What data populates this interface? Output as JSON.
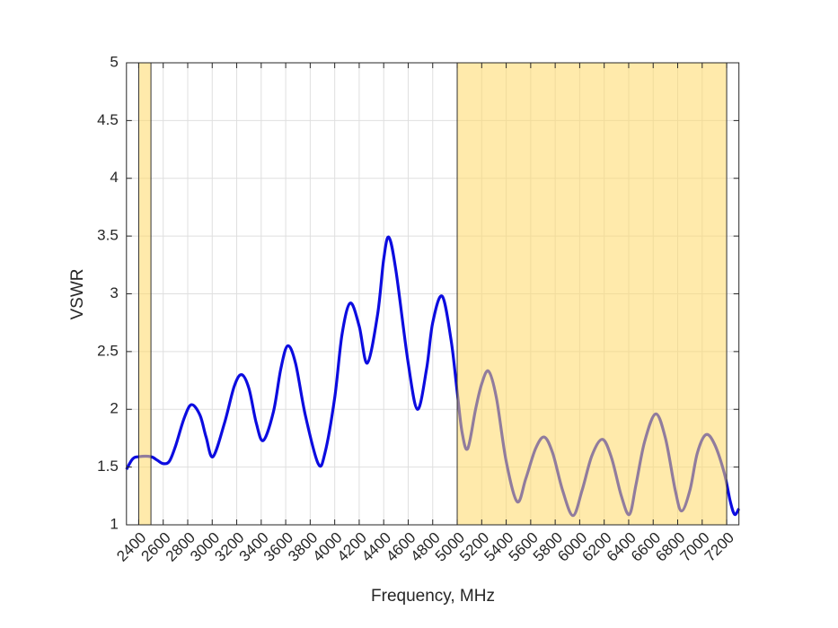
{
  "chart_data": {
    "type": "line",
    "xlabel": "Frequency, MHz",
    "ylabel": "VSWR",
    "x": [
      2300,
      2350,
      2400,
      2500,
      2550,
      2600,
      2650,
      2700,
      2770,
      2830,
      2900,
      2950,
      3006,
      3100,
      3180,
      3240,
      3300,
      3360,
      3417,
      3500,
      3560,
      3616,
      3680,
      3760,
      3865,
      3920,
      4000,
      4060,
      4127,
      4200,
      4266,
      4350,
      4400,
      4442,
      4500,
      4600,
      4676,
      4750,
      4800,
      4877,
      4950,
      5000,
      5040,
      5086,
      5150,
      5200,
      5256,
      5320,
      5400,
      5490,
      5560,
      5640,
      5711,
      5780,
      5860,
      5945,
      6020,
      6100,
      6186,
      6260,
      6340,
      6406,
      6460,
      6530,
      6620,
      6700,
      6780,
      6832,
      6900,
      6960,
      7030,
      7100,
      7180,
      7230,
      7265,
      7300
    ],
    "series": [
      {
        "name": "VSWR",
        "color": "#0c0ce0",
        "values": [
          1.48,
          1.57,
          1.59,
          1.59,
          1.56,
          1.53,
          1.55,
          1.68,
          1.92,
          2.04,
          1.95,
          1.76,
          1.59,
          1.88,
          2.2,
          2.3,
          2.18,
          1.88,
          1.73,
          1.98,
          2.35,
          2.55,
          2.4,
          1.95,
          1.53,
          1.62,
          2.1,
          2.65,
          2.92,
          2.72,
          2.4,
          2.82,
          3.3,
          3.49,
          3.2,
          2.4,
          2.0,
          2.35,
          2.75,
          2.98,
          2.6,
          2.15,
          1.8,
          1.66,
          2.0,
          2.22,
          2.33,
          2.1,
          1.55,
          1.2,
          1.4,
          1.66,
          1.76,
          1.62,
          1.3,
          1.08,
          1.3,
          1.6,
          1.74,
          1.58,
          1.25,
          1.09,
          1.35,
          1.72,
          1.96,
          1.75,
          1.3,
          1.12,
          1.3,
          1.62,
          1.78,
          1.7,
          1.45,
          1.2,
          1.09,
          1.14
        ]
      }
    ],
    "shaded_regions": [
      [
        2400,
        2500
      ],
      [
        5000,
        7200
      ]
    ],
    "shade_color": "#ffd966",
    "xlim": [
      2300,
      7300
    ],
    "xticks": [
      2400,
      2600,
      2800,
      3000,
      3200,
      3400,
      3600,
      3800,
      4000,
      4200,
      4400,
      4600,
      4800,
      5000,
      5200,
      5400,
      5600,
      5800,
      6000,
      6200,
      6400,
      6600,
      6800,
      7000,
      7200
    ],
    "ylim": [
      1,
      5
    ],
    "yticks": [
      1,
      1.5,
      2,
      2.5,
      3,
      3.5,
      4,
      4.5,
      5
    ],
    "grid": true
  }
}
